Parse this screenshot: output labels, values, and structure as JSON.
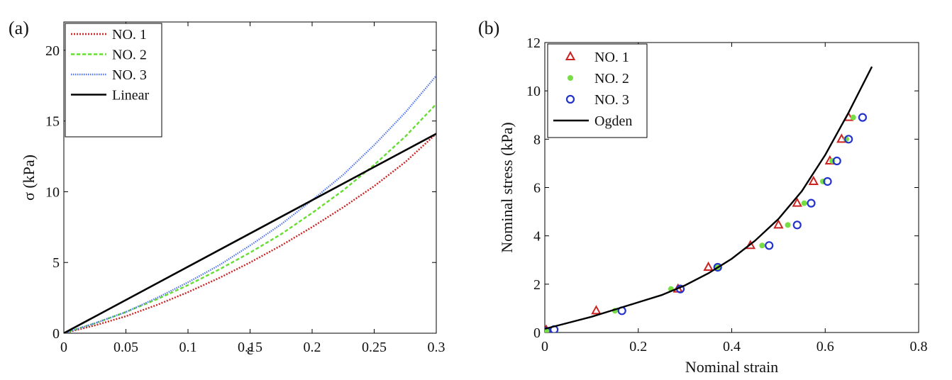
{
  "chart_data": [
    {
      "panel_label": "(a)",
      "type": "line",
      "xlabel": "ε",
      "ylabel": "σ (kPa)",
      "xlim": [
        0,
        0.3
      ],
      "ylim": [
        0,
        22
      ],
      "xticks": [
        0,
        0.05,
        0.1,
        0.15,
        0.2,
        0.25,
        0.3
      ],
      "xtick_labels": [
        "0",
        "0.05",
        "0.1",
        "0.15",
        "0.2",
        "0.25",
        "0.3"
      ],
      "yticks": [
        0,
        5,
        10,
        15,
        20
      ],
      "ytick_labels": [
        "0",
        "5",
        "10",
        "15",
        "20"
      ],
      "grid": false,
      "legend_position": "top-left",
      "series": [
        {
          "name": "NO. 1",
          "color": "#cc2222",
          "style": "dotted",
          "x": [
            0,
            0.025,
            0.05,
            0.075,
            0.1,
            0.125,
            0.15,
            0.175,
            0.2,
            0.225,
            0.25,
            0.275,
            0.3
          ],
          "y": [
            0,
            0.55,
            1.2,
            2.0,
            2.9,
            3.9,
            5.0,
            6.2,
            7.5,
            8.9,
            10.4,
            12.1,
            14.1
          ]
        },
        {
          "name": "NO. 2",
          "color": "#66dd33",
          "style": "dashed",
          "x": [
            0,
            0.025,
            0.05,
            0.075,
            0.1,
            0.125,
            0.15,
            0.175,
            0.2,
            0.225,
            0.25,
            0.275,
            0.3
          ],
          "y": [
            0,
            0.7,
            1.5,
            2.4,
            3.4,
            4.5,
            5.7,
            7.0,
            8.5,
            10.1,
            11.9,
            13.9,
            16.2
          ]
        },
        {
          "name": "NO. 3",
          "color": "#5577ee",
          "style": "dotted",
          "x": [
            0,
            0.025,
            0.05,
            0.075,
            0.1,
            0.125,
            0.15,
            0.175,
            0.2,
            0.225,
            0.25,
            0.275,
            0.3
          ],
          "y": [
            0,
            0.7,
            1.5,
            2.5,
            3.6,
            4.8,
            6.2,
            7.7,
            9.4,
            11.2,
            13.3,
            15.6,
            18.2
          ]
        },
        {
          "name": "Linear",
          "color": "#000000",
          "style": "solid",
          "x": [
            0,
            0.3
          ],
          "y": [
            0,
            14.1
          ]
        }
      ]
    },
    {
      "panel_label": "(b)",
      "type": "scatter",
      "xlabel": "Nominal strain",
      "ylabel": "Nominal stress (kPa)",
      "xlim": [
        0,
        0.8
      ],
      "ylim": [
        0,
        12
      ],
      "xticks": [
        0,
        0.2,
        0.4,
        0.6,
        0.8
      ],
      "xtick_labels": [
        "0",
        "0.2",
        "0.4",
        "0.6",
        "0.8"
      ],
      "yticks": [
        0,
        2,
        4,
        6,
        8,
        10,
        12
      ],
      "ytick_labels": [
        "0",
        "2",
        "4",
        "6",
        "8",
        "10",
        "12"
      ],
      "grid": false,
      "legend_position": "top-left",
      "series": [
        {
          "name": "NO. 1",
          "marker": "triangle",
          "color": "#cc2222",
          "x": [
            0.003,
            0.11,
            0.285,
            0.35,
            0.44,
            0.5,
            0.54,
            0.575,
            0.61,
            0.635,
            0.65
          ],
          "y": [
            0.1,
            0.9,
            1.8,
            2.7,
            3.6,
            4.45,
            5.35,
            6.25,
            7.1,
            8.0,
            8.9
          ]
        },
        {
          "name": "NO. 2",
          "marker": "dot",
          "color": "#77dd44",
          "x": [
            0.004,
            0.15,
            0.27,
            0.37,
            0.465,
            0.52,
            0.555,
            0.595,
            0.615,
            0.645,
            0.66
          ],
          "y": [
            0.08,
            0.9,
            1.8,
            2.7,
            3.6,
            4.45,
            5.35,
            6.25,
            7.1,
            8.0,
            8.9
          ]
        },
        {
          "name": "NO. 3",
          "marker": "circle",
          "color": "#2233cc",
          "x": [
            0.004,
            0.02,
            0.165,
            0.29,
            0.37,
            0.48,
            0.54,
            0.57,
            0.605,
            0.625,
            0.65,
            0.68
          ],
          "y": [
            0.05,
            0.12,
            0.9,
            1.8,
            2.7,
            3.6,
            4.45,
            5.35,
            6.25,
            7.1,
            8.0,
            8.9
          ]
        },
        {
          "name": "Ogden",
          "marker": "line",
          "color": "#000000",
          "x": [
            0,
            0.05,
            0.1,
            0.15,
            0.2,
            0.25,
            0.3,
            0.35,
            0.4,
            0.45,
            0.5,
            0.55,
            0.6,
            0.65,
            0.7
          ],
          "y": [
            0.15,
            0.4,
            0.65,
            0.95,
            1.25,
            1.55,
            1.95,
            2.45,
            3.05,
            3.8,
            4.7,
            5.85,
            7.35,
            9.1,
            11.0
          ]
        }
      ]
    }
  ]
}
